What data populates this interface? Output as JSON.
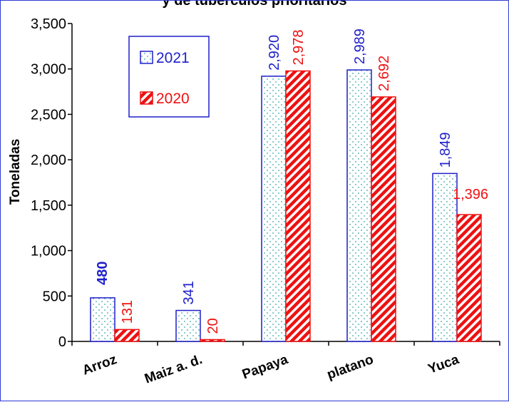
{
  "chart_data": {
    "type": "bar",
    "title": "y de tuberculos prioritarios",
    "ylabel": "Toneladas",
    "xlabel": "",
    "categories": [
      "Arroz",
      "Maiz a. d.",
      "Papaya",
      "platano",
      "Yuca"
    ],
    "ylim": [
      0,
      3500
    ],
    "yticks": [
      0,
      500,
      1000,
      1500,
      2000,
      2500,
      3000,
      3500
    ],
    "ytick_labels": [
      "0",
      "500",
      "1,000",
      "1,500",
      "2,000",
      "2,500",
      "3,000",
      "3,500"
    ],
    "grid": false,
    "legend_position": "top-left",
    "series": [
      {
        "name": "2021",
        "color": "#1f1fcc",
        "pattern": "dotted",
        "values": [
          480,
          341,
          2920,
          2989,
          1849
        ],
        "labels": [
          "480",
          "341",
          "2,920",
          "2,989",
          "1,849"
        ]
      },
      {
        "name": "2020",
        "color": "#ee1111",
        "pattern": "diagonal-stripes",
        "values": [
          131,
          20,
          2978,
          2692,
          1396
        ],
        "labels": [
          "131",
          "20",
          "2,978",
          "2,692",
          "1,396"
        ]
      }
    ]
  }
}
